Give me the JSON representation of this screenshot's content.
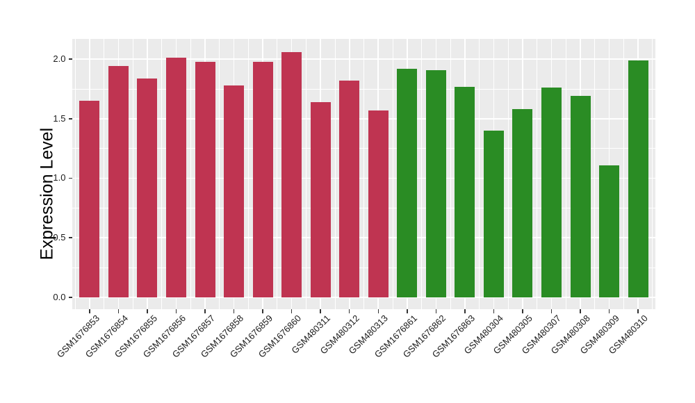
{
  "chart_data": {
    "type": "bar",
    "title": "",
    "xlabel": "",
    "ylabel": "Expression Level",
    "categories": [
      "GSM1676853",
      "GSM1676854",
      "GSM1676855",
      "GSM1676856",
      "GSM1676857",
      "GSM1676858",
      "GSM1676859",
      "GSM1676860",
      "GSM480311",
      "GSM480312",
      "GSM480313",
      "GSM1676861",
      "GSM1676862",
      "GSM1676863",
      "GSM480304",
      "GSM480305",
      "GSM480307",
      "GSM480308",
      "GSM480309",
      "GSM480310"
    ],
    "values": [
      1.65,
      1.94,
      1.84,
      2.01,
      1.98,
      1.78,
      1.98,
      2.06,
      1.64,
      1.82,
      1.57,
      1.92,
      1.91,
      1.77,
      1.4,
      1.58,
      1.76,
      1.69,
      1.11,
      1.99
    ],
    "groups": [
      "groupA",
      "groupA",
      "groupA",
      "groupA",
      "groupA",
      "groupA",
      "groupA",
      "groupA",
      "groupA",
      "groupA",
      "groupA",
      "groupB",
      "groupB",
      "groupB",
      "groupB",
      "groupB",
      "groupB",
      "groupB",
      "groupB",
      "groupB"
    ],
    "group_colors": {
      "groupA": "#BF3451",
      "groupB": "#2A8C24"
    },
    "ylim": [
      -0.1,
      2.17
    ],
    "yticks": [
      {
        "value": 0.0,
        "label": "0.0"
      },
      {
        "value": 0.5,
        "label": "0.5"
      },
      {
        "value": 1.0,
        "label": "1.0"
      },
      {
        "value": 1.5,
        "label": "1.5"
      },
      {
        "value": 2.0,
        "label": "2.0"
      }
    ],
    "minor_yticks": [
      0.25,
      0.75,
      1.25,
      1.75
    ],
    "grid": "on",
    "legend_position": "none",
    "panel_bg": "#EBEBEB",
    "grid_color": "#FFFFFF",
    "axis_text_color": "#1A1A1A"
  }
}
